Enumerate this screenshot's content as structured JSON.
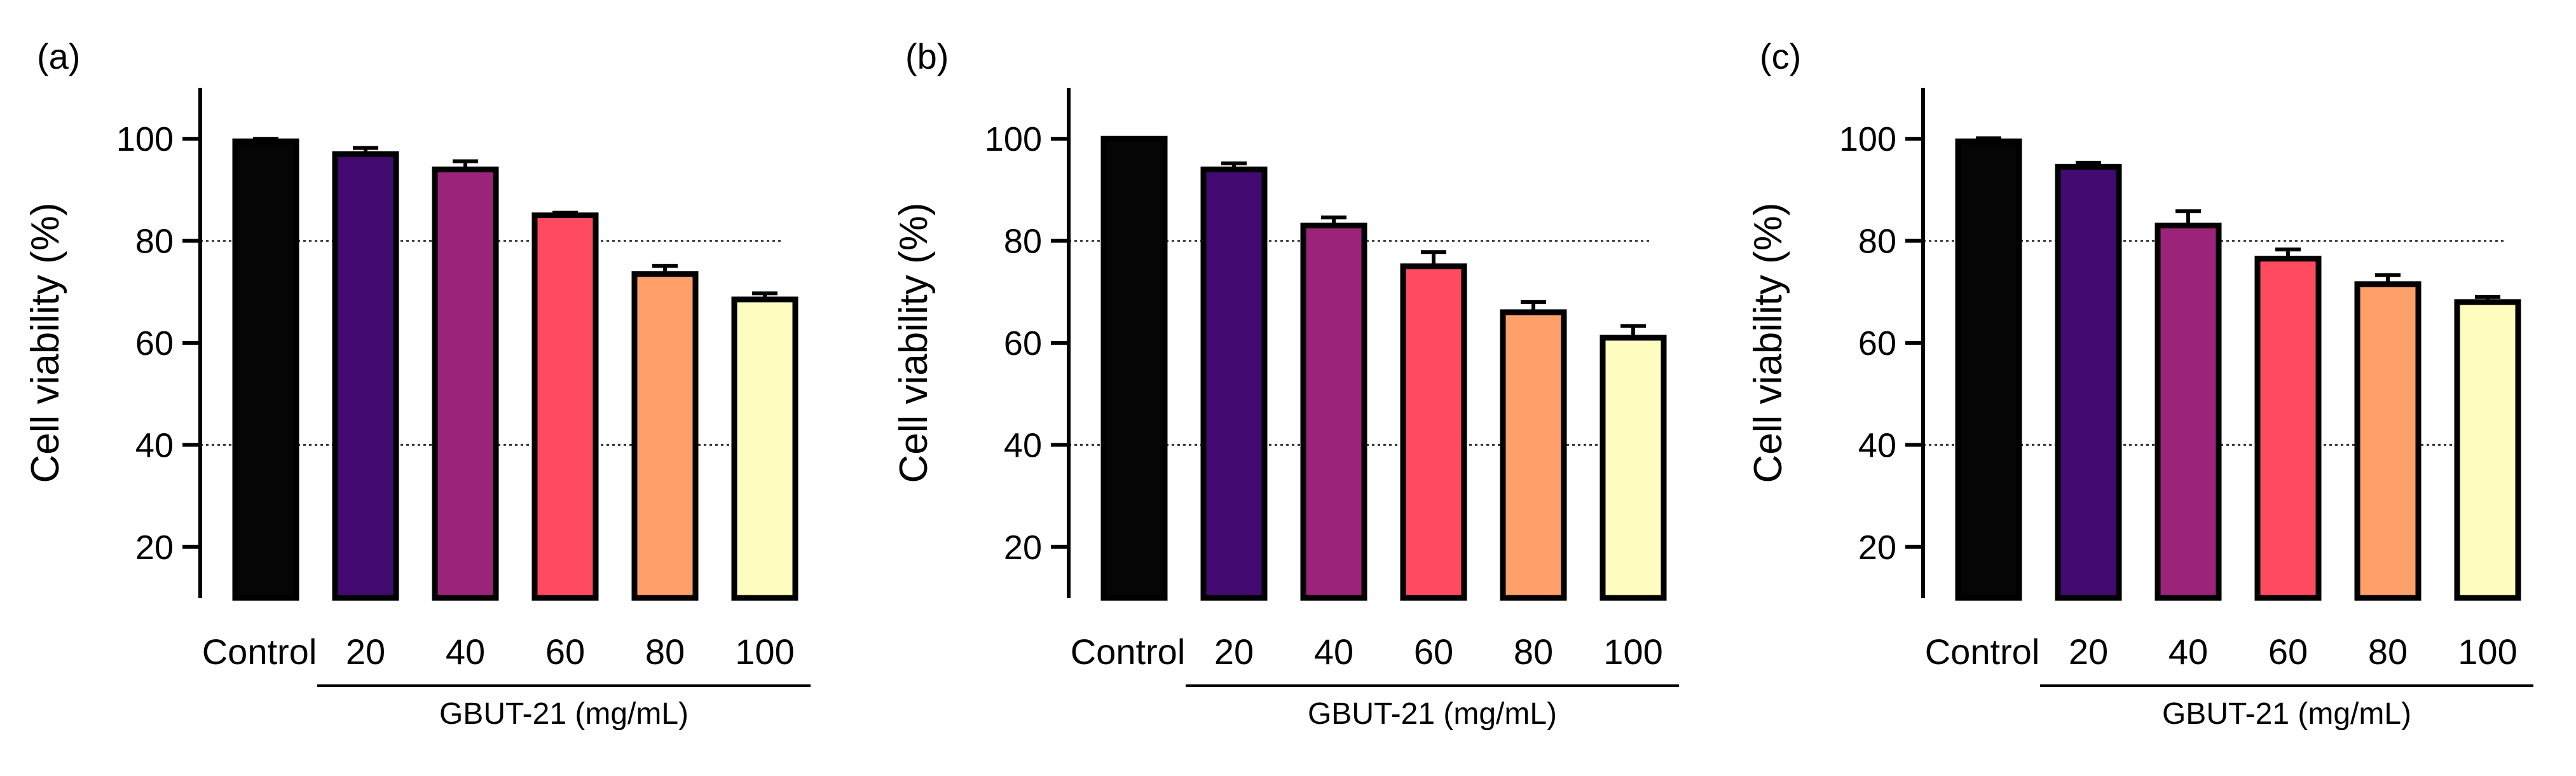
{
  "figure": {
    "colors": {
      "axis": "#000000",
      "grid": "#333333",
      "bar_stroke": "#000000",
      "fills": [
        "#050505",
        "#420a70",
        "#9b2379",
        "#ff4a5f",
        "#ff9f6a",
        "#fefcbe"
      ]
    }
  },
  "chart_data": [
    {
      "panel_label": "(a)",
      "type": "bar",
      "ylabel": "Cell viability (%)",
      "xlabel": "GBUT-21 (mg/mL)",
      "categories": [
        "Control",
        "20",
        "40",
        "60",
        "80",
        "100"
      ],
      "values": [
        99.5,
        97,
        94,
        85,
        73.5,
        68.5
      ],
      "errors": [
        0.5,
        1.2,
        1.6,
        0.5,
        1.6,
        1.2
      ],
      "ylim": [
        10,
        110
      ],
      "yticks": [
        20,
        40,
        60,
        80,
        100
      ],
      "yticklabels": [
        "20",
        "40",
        "60",
        "80",
        "100"
      ],
      "reference_lines": [
        40,
        80
      ]
    },
    {
      "panel_label": "(b)",
      "type": "bar",
      "ylabel": "Cell viability (%)",
      "xlabel": "GBUT-21 (mg/mL)",
      "categories": [
        "Control",
        "20",
        "40",
        "60",
        "80",
        "100"
      ],
      "values": [
        100,
        94,
        83,
        75,
        66,
        61
      ],
      "errors": [
        0,
        1.2,
        1.6,
        2.8,
        2.0,
        2.3
      ],
      "ylim": [
        10,
        110
      ],
      "yticks": [
        20,
        40,
        60,
        80,
        100
      ],
      "yticklabels": [
        "20",
        "40",
        "60",
        "80",
        "100"
      ],
      "reference_lines": [
        40,
        80
      ]
    },
    {
      "panel_label": "(c)",
      "type": "bar",
      "ylabel": "Cell viability (%)",
      "xlabel": "GBUT-21 (mg/mL)",
      "categories": [
        "Control",
        "20",
        "40",
        "60",
        "80",
        "100"
      ],
      "values": [
        99.5,
        94.5,
        83,
        76.5,
        71.5,
        68
      ],
      "errors": [
        0.6,
        0.8,
        2.8,
        1.8,
        1.8,
        1.0
      ],
      "ylim": [
        10,
        110
      ],
      "yticks": [
        20,
        40,
        60,
        80,
        100
      ],
      "yticklabels": [
        "20",
        "40",
        "60",
        "80",
        "100"
      ],
      "reference_lines": [
        40,
        80
      ]
    }
  ]
}
